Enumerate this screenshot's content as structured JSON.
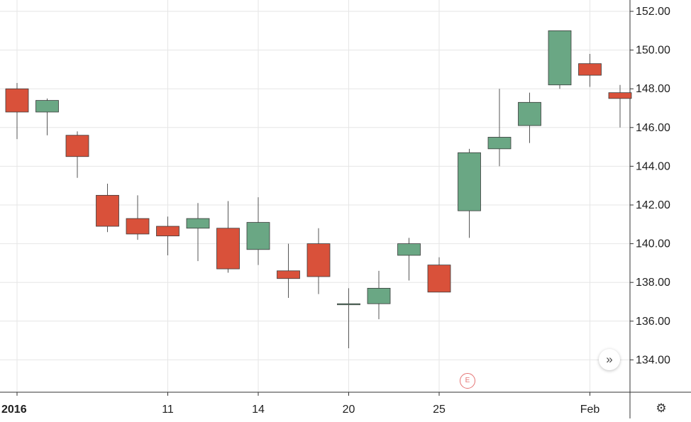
{
  "chart_data": {
    "type": "candlestick",
    "title": "",
    "xlabel": "",
    "ylabel": "",
    "ylim": [
      132.5,
      153.0
    ],
    "grid": true,
    "x_tick_labels": [
      "2016",
      "11",
      "14",
      "20",
      "25",
      "Feb"
    ],
    "y_tick_labels": [
      "134.00",
      "136.00",
      "138.00",
      "140.00",
      "142.00",
      "144.00",
      "146.00",
      "148.00",
      "150.00",
      "152.00"
    ],
    "candles": [
      {
        "open": 148.0,
        "high": 148.3,
        "low": 145.4,
        "close": 146.8
      },
      {
        "open": 146.8,
        "high": 147.5,
        "low": 145.6,
        "close": 147.4
      },
      {
        "open": 145.6,
        "high": 145.8,
        "low": 143.4,
        "close": 144.5
      },
      {
        "open": 142.5,
        "high": 143.1,
        "low": 140.6,
        "close": 140.9
      },
      {
        "open": 141.3,
        "high": 142.5,
        "low": 140.2,
        "close": 140.5
      },
      {
        "open": 140.9,
        "high": 141.4,
        "low": 139.4,
        "close": 140.4
      },
      {
        "open": 140.8,
        "high": 142.1,
        "low": 139.1,
        "close": 141.3
      },
      {
        "open": 140.8,
        "high": 142.2,
        "low": 138.5,
        "close": 138.7
      },
      {
        "open": 139.7,
        "high": 142.4,
        "low": 138.9,
        "close": 141.1
      },
      {
        "open": 138.6,
        "high": 140.0,
        "low": 137.2,
        "close": 138.2
      },
      {
        "open": 140.0,
        "high": 140.8,
        "low": 137.4,
        "close": 138.3
      },
      {
        "open": 136.9,
        "high": 137.7,
        "low": 134.6,
        "close": 136.9
      },
      {
        "open": 136.9,
        "high": 138.6,
        "low": 136.1,
        "close": 137.7
      },
      {
        "open": 139.4,
        "high": 140.3,
        "low": 138.1,
        "close": 140.0
      },
      {
        "open": 138.9,
        "high": 139.3,
        "low": 137.5,
        "close": 137.5
      },
      {
        "open": 141.7,
        "high": 144.9,
        "low": 140.3,
        "close": 144.7
      },
      {
        "open": 144.9,
        "high": 148.0,
        "low": 144.0,
        "close": 145.5
      },
      {
        "open": 146.1,
        "high": 147.8,
        "low": 145.2,
        "close": 147.3
      },
      {
        "open": 148.2,
        "high": 151.0,
        "low": 148.0,
        "close": 151.0
      },
      {
        "open": 149.3,
        "high": 149.8,
        "low": 148.1,
        "close": 148.7
      },
      {
        "open": 147.8,
        "high": 148.2,
        "low": 146.0,
        "close": 147.5
      }
    ],
    "colors": {
      "up": "#6aa784",
      "down": "#d9513a",
      "grid": "#e6e6e6",
      "axis": "#333333",
      "wick": "#555555"
    }
  },
  "controls": {
    "scroll_forward_icon": "double-chevron-right-icon",
    "scroll_forward_glyph": "»",
    "earnings_label": "E",
    "settings_icon": "gear-icon",
    "settings_glyph": "⚙"
  }
}
